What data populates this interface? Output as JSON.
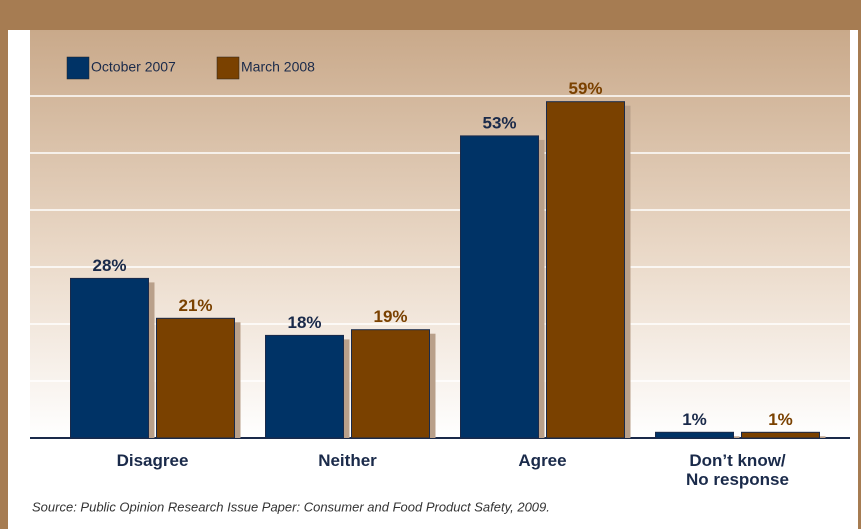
{
  "chart_data": {
    "type": "bar",
    "categories": [
      "Disagree",
      "Neither",
      "Agree",
      "Don’t know/\nNo response"
    ],
    "series": [
      {
        "name": "October 2007",
        "color": "#003366",
        "values": [
          28,
          18,
          53,
          1
        ],
        "value_labels": [
          "28%",
          "18%",
          "53%",
          "1%"
        ]
      },
      {
        "name": "March 2008",
        "color": "#7a4100",
        "values": [
          21,
          19,
          59,
          1
        ],
        "value_labels": [
          "21%",
          "19%",
          "59%",
          "1%"
        ]
      }
    ],
    "ylim": [
      0,
      60
    ],
    "yticks": [
      0,
      10,
      20,
      30,
      40,
      50,
      60
    ],
    "grid": true,
    "source": "Source: Public Opinion Research Issue Paper: Consumer and Food Product Safety, 2009."
  }
}
